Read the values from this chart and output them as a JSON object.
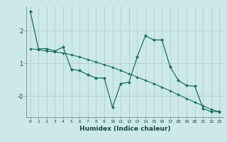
{
  "title": "",
  "xlabel": "Humidex (Indice chaleur)",
  "bg_color": "#cce8e8",
  "grid_color": "#b0d0d0",
  "line_color": "#1a6e62",
  "xlim": [
    -0.5,
    23.5
  ],
  "ylim": [
    -0.65,
    2.75
  ],
  "xticks": [
    0,
    1,
    2,
    3,
    4,
    5,
    6,
    7,
    8,
    9,
    10,
    11,
    12,
    13,
    14,
    15,
    16,
    17,
    18,
    19,
    20,
    21,
    22,
    23
  ],
  "yticks": [
    0.0,
    1.0,
    2.0
  ],
  "ytick_labels": [
    "-0",
    "1",
    "2"
  ],
  "series1_x": [
    0,
    1,
    2,
    3,
    4,
    5,
    6,
    7,
    8,
    9,
    10,
    11,
    12,
    13,
    14,
    15,
    16,
    17,
    18,
    19,
    20,
    21,
    22,
    23
  ],
  "series1_y": [
    2.6,
    1.45,
    1.45,
    1.38,
    1.5,
    0.82,
    0.78,
    0.65,
    0.55,
    0.55,
    -0.35,
    0.38,
    0.42,
    1.2,
    1.85,
    1.72,
    1.72,
    0.9,
    0.48,
    0.32,
    0.3,
    -0.38,
    -0.48,
    -0.48
  ],
  "series2_x": [
    0,
    1,
    2,
    3,
    4,
    5,
    6,
    7,
    8,
    9,
    10,
    11,
    12,
    13,
    14,
    15,
    16,
    17,
    18,
    19,
    20,
    21,
    22,
    23
  ],
  "series2_y": [
    1.45,
    1.42,
    1.38,
    1.35,
    1.32,
    1.26,
    1.2,
    1.12,
    1.04,
    0.96,
    0.88,
    0.78,
    0.68,
    0.58,
    0.48,
    0.38,
    0.27,
    0.16,
    0.04,
    -0.08,
    -0.19,
    -0.3,
    -0.41,
    -0.49
  ]
}
